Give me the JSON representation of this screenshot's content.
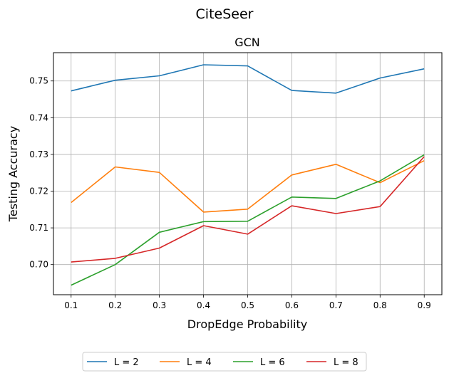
{
  "chart_data": {
    "type": "line",
    "suptitle": "CiteSeer",
    "title": "GCN",
    "xlabel": "DropEdge Probability",
    "ylabel": "Testing Accuracy",
    "x": [
      0.1,
      0.2,
      0.3,
      0.4,
      0.5,
      0.6,
      0.7,
      0.8,
      0.9
    ],
    "x_ticks": [
      "0.1",
      "0.2",
      "0.3",
      "0.4",
      "0.5",
      "0.6",
      "0.7",
      "0.8",
      "0.9"
    ],
    "y_ticks": [
      "0.70",
      "0.71",
      "0.72",
      "0.73",
      "0.74",
      "0.75"
    ],
    "xlim": [
      0.06,
      0.94
    ],
    "ylim": [
      0.6918,
      0.7577
    ],
    "grid": true,
    "legend_position": "bottom-center",
    "series": [
      {
        "name": "L = 2",
        "color": "#1f77b4",
        "values": [
          0.7473,
          0.7502,
          0.7514,
          0.7544,
          0.7541,
          0.7474,
          0.7467,
          0.7508,
          0.7533
        ]
      },
      {
        "name": "L = 4",
        "color": "#ff7f0e",
        "values": [
          0.7169,
          0.7266,
          0.7251,
          0.7143,
          0.7151,
          0.7244,
          0.7273,
          0.7223,
          0.7283
        ]
      },
      {
        "name": "L = 6",
        "color": "#2ca02c",
        "values": [
          0.6944,
          0.7,
          0.7088,
          0.7117,
          0.7118,
          0.7184,
          0.718,
          0.7228,
          0.7299
        ]
      },
      {
        "name": "L = 8",
        "color": "#d62728",
        "values": [
          0.7007,
          0.7017,
          0.7045,
          0.7106,
          0.7083,
          0.716,
          0.7139,
          0.7158,
          0.7294
        ]
      }
    ]
  }
}
